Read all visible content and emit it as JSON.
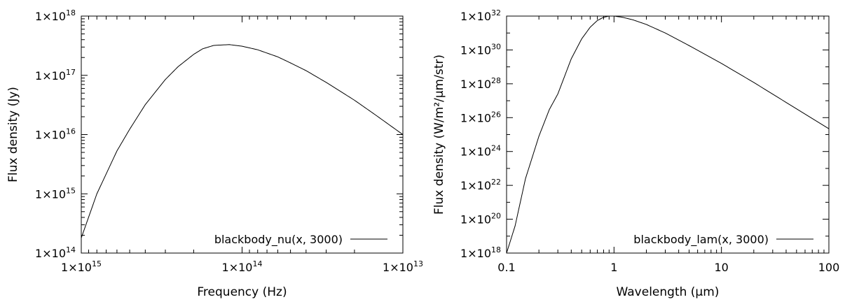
{
  "chart_data": [
    {
      "type": "line",
      "title": "",
      "xlabel": "Frequency (Hz)",
      "ylabel": "Flux density (Jy)",
      "x_scale": "log",
      "y_scale": "log",
      "x_reversed": true,
      "xlim": [
        1000000000000000.0,
        10000000000000.0
      ],
      "ylim": [
        100000000000000.0,
        1e+18
      ],
      "grid": false,
      "legend_position": "bottom-right",
      "x_tick_labels": [
        {
          "value": 1000000000000000.0,
          "mantissa": "1×10",
          "exp": "15"
        },
        {
          "value": 100000000000000.0,
          "mantissa": "1×10",
          "exp": "14"
        },
        {
          "value": 10000000000000.0,
          "mantissa": "1×10",
          "exp": "13"
        }
      ],
      "y_tick_labels": [
        {
          "value": 100000000000000.0,
          "mantissa": "1×10",
          "exp": "14"
        },
        {
          "value": 1000000000000000.0,
          "mantissa": "1×10",
          "exp": "15"
        },
        {
          "value": 1e+16,
          "mantissa": "1×10",
          "exp": "16"
        },
        {
          "value": 1e+17,
          "mantissa": "1×10",
          "exp": "17"
        },
        {
          "value": 1e+18,
          "mantissa": "1×10",
          "exp": "18"
        }
      ],
      "series": [
        {
          "name": "blackbody_nu(x, 3000)",
          "x": [
            1000000000000000.0,
            800000000000000.0,
            600000000000000.0,
            500000000000000.0,
            400000000000000.0,
            300000000000000.0,
            250000000000000.0,
            200000000000000.0,
            176000000000000.0,
            150000000000000.0,
            120000000000000.0,
            100000000000000.0,
            80000000000000.0,
            60000000000000.0,
            50000000000000.0,
            40000000000000.0,
            30000000000000.0,
            20000000000000.0,
            15000000000000.0,
            10000000000000.0
          ],
          "y": [
            180000000000000.0,
            1000000000000000.0,
            5300000000000000.0,
            1.23e+16,
            3.2e+16,
            8.5e+16,
            1.4e+17,
            2.26e+17,
            2.8e+17,
            3.2e+17,
            3.3e+17,
            3.1e+17,
            2.7e+17,
            2.05e+17,
            1.62e+17,
            1.2e+17,
            7.6e+16,
            3.8e+16,
            2.2e+16,
            1e+16
          ]
        }
      ]
    },
    {
      "type": "line",
      "title": "",
      "xlabel": "Wavelength (µm)",
      "ylabel": "Flux density (W/m²/µm/str)",
      "x_scale": "log",
      "y_scale": "log",
      "xlim": [
        0.1,
        100
      ],
      "ylim": [
        1e+18,
        1e+32
      ],
      "grid": false,
      "legend_position": "bottom-right",
      "x_tick_labels": [
        {
          "value": 0.1,
          "text": "0.1"
        },
        {
          "value": 1,
          "text": "1"
        },
        {
          "value": 10,
          "text": "10"
        },
        {
          "value": 100,
          "text": "100"
        }
      ],
      "y_tick_labels": [
        {
          "value": 1e+18,
          "mantissa": "1×10",
          "exp": "18"
        },
        {
          "value": 1e+20,
          "mantissa": "1×10",
          "exp": "20"
        },
        {
          "value": 1e+22,
          "mantissa": "1×10",
          "exp": "22"
        },
        {
          "value": 1e+24,
          "mantissa": "1×10",
          "exp": "24"
        },
        {
          "value": 1e+26,
          "mantissa": "1×10",
          "exp": "26"
        },
        {
          "value": 1e+28,
          "mantissa": "1×10",
          "exp": "28"
        },
        {
          "value": 1e+30,
          "mantissa": "1×10",
          "exp": "30"
        },
        {
          "value": 1e+32,
          "mantissa": "1×10",
          "exp": "32"
        }
      ],
      "series": [
        {
          "name": "blackbody_lam(x, 3000)",
          "x": [
            0.1,
            0.12,
            0.15,
            0.2,
            0.25,
            0.3,
            0.4,
            0.5,
            0.6,
            0.7,
            0.8,
            0.9,
            1,
            1.2,
            1.5,
            2,
            3,
            5,
            10,
            20,
            50,
            100
          ],
          "y": [
            1e+18,
            4e+19,
            2.5e+22,
            8e+24,
            3e+26,
            2.5e+27,
            3e+29,
            4.5e+30,
            2.2e+31,
            5.5e+31,
            8.5e+31,
            1e+32,
            1e+32,
            8.5e+31,
            6e+31,
            3.2e+31,
            1e+31,
            1.8e+30,
            1.6e+29,
            1.2e+28,
            3.3e+26,
            2.2e+25
          ]
        }
      ]
    }
  ]
}
